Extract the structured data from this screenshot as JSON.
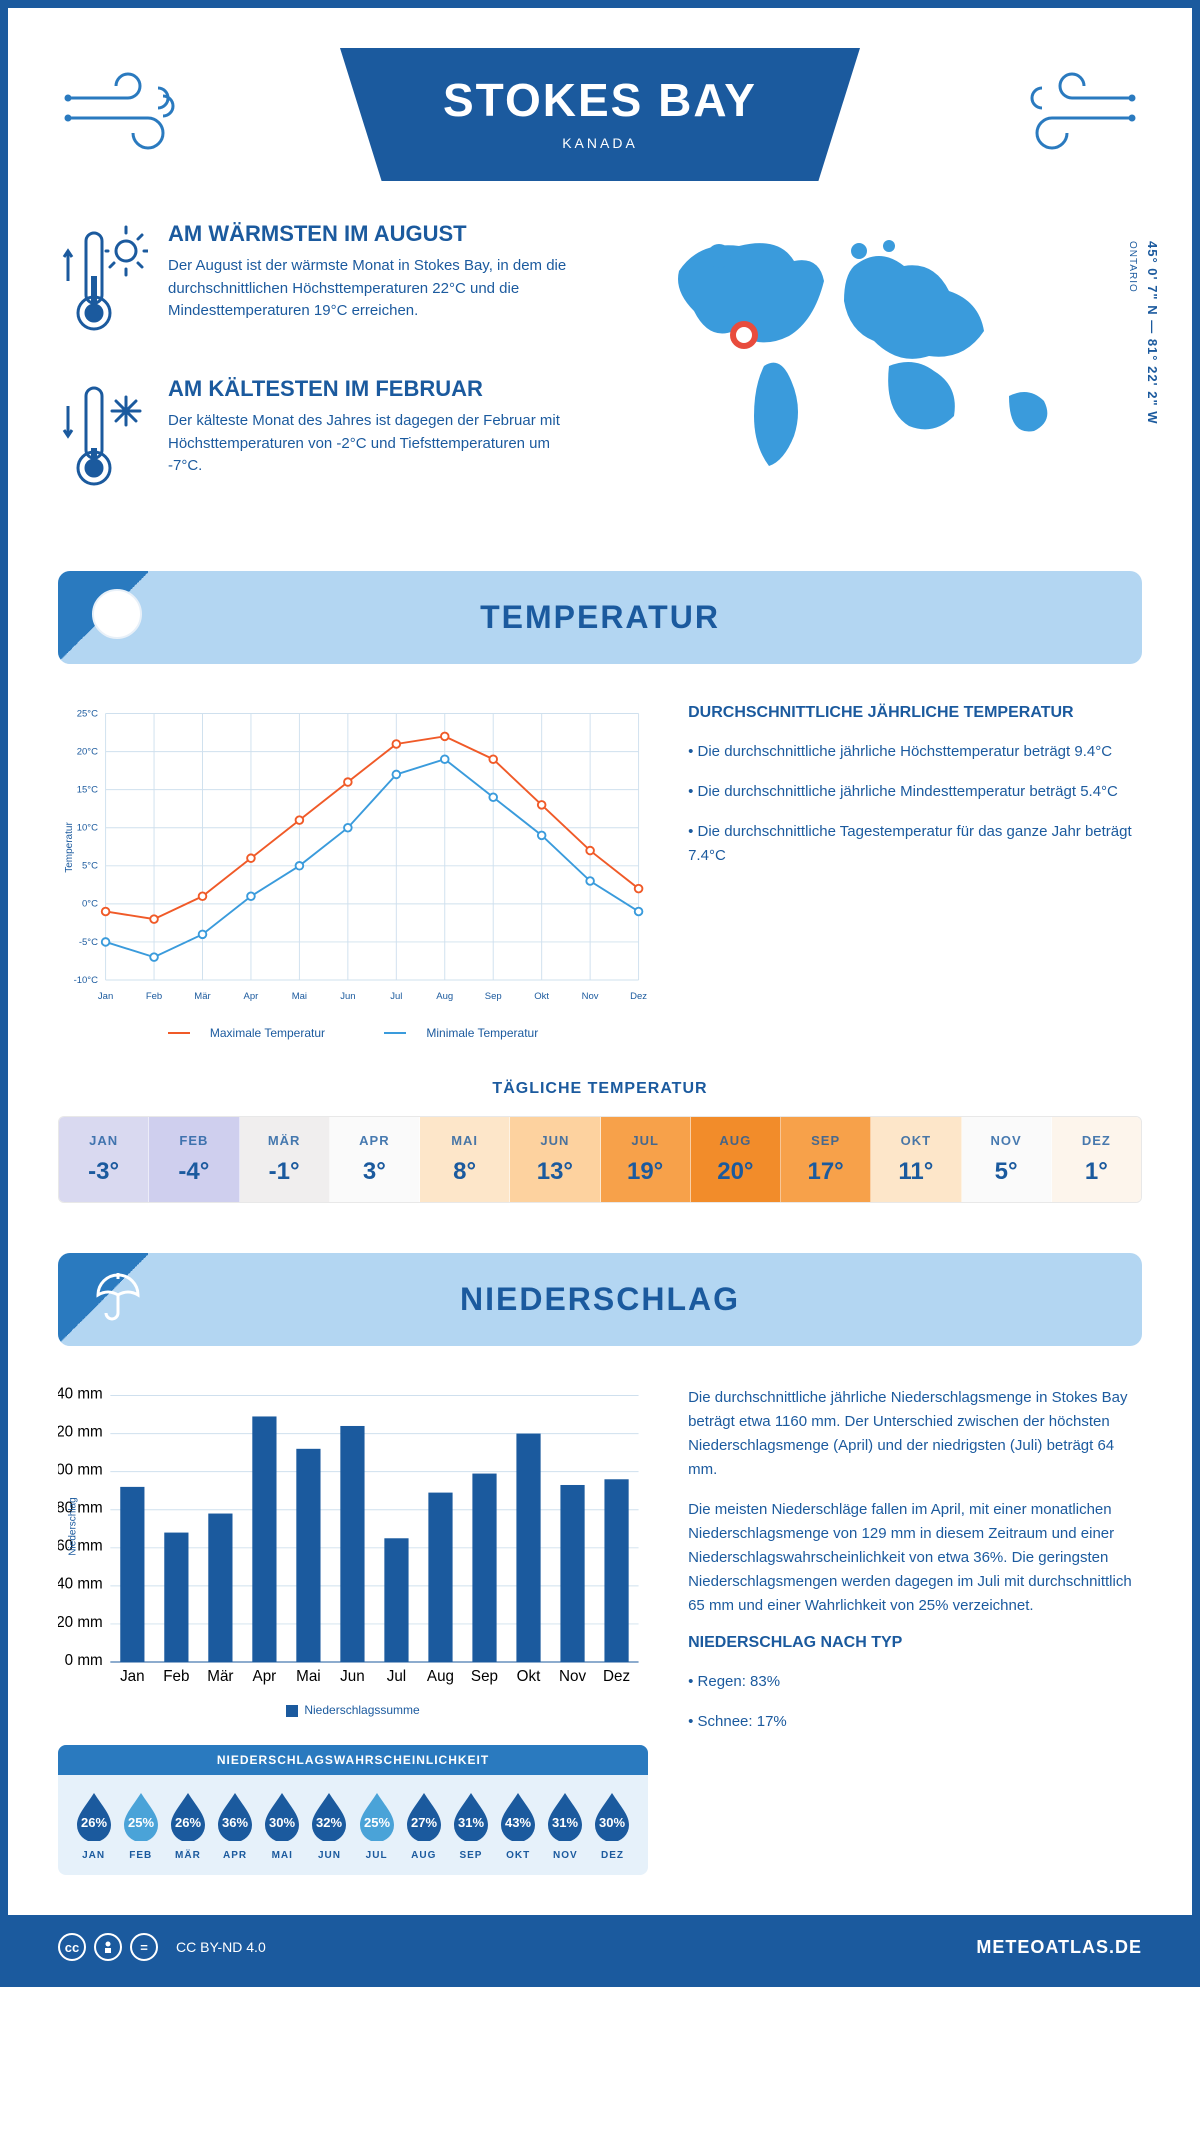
{
  "header": {
    "title": "STOKES BAY",
    "subtitle": "KANADA"
  },
  "summary": {
    "warm": {
      "title": "AM WÄRMSTEN IM AUGUST",
      "text": "Der August ist der wärmste Monat in Stokes Bay, in dem die durchschnittlichen Höchsttemperaturen 22°C und die Mindesttemperaturen 19°C erreichen."
    },
    "cold": {
      "title": "AM KÄLTESTEN IM FEBRUAR",
      "text": "Der kälteste Monat des Jahres ist dagegen der Februar mit Höchsttemperaturen von -2°C und Tiefsttemperaturen um -7°C."
    },
    "map": {
      "coords": "45° 0' 7\" N — 81° 22' 2\" W",
      "region": "ONTARIO"
    }
  },
  "temp_section": {
    "banner": "TEMPERATUR",
    "chart": {
      "type": "line",
      "months": [
        "Jan",
        "Feb",
        "Mär",
        "Apr",
        "Mai",
        "Jun",
        "Jul",
        "Aug",
        "Sep",
        "Okt",
        "Nov",
        "Dez"
      ],
      "series_max": {
        "label": "Maximale Temperatur",
        "color": "#f05a28",
        "values": [
          -1,
          -2,
          1,
          6,
          11,
          16,
          21,
          22,
          19,
          13,
          7,
          2
        ]
      },
      "series_min": {
        "label": "Minimale Temperatur",
        "color": "#3a9bdc",
        "values": [
          -5,
          -7,
          -4,
          1,
          5,
          10,
          17,
          19,
          14,
          9,
          3,
          -1
        ]
      },
      "ylim": [
        -10,
        25
      ],
      "ytick_step": 5,
      "ylabel": "Temperatur",
      "grid_color": "#cfe0ee"
    },
    "side": {
      "heading": "DURCHSCHNITTLICHE JÄHRLICHE TEMPERATUR",
      "bullets": [
        "Die durchschnittliche jährliche Höchsttemperatur beträgt 9.4°C",
        "Die durchschnittliche jährliche Mindesttemperatur beträgt 5.4°C",
        "Die durchschnittliche Tagestemperatur für das ganze Jahr beträgt 7.4°C"
      ]
    }
  },
  "daily_temp": {
    "title": "TÄGLICHE TEMPERATUR",
    "months": [
      "JAN",
      "FEB",
      "MÄR",
      "APR",
      "MAI",
      "JUN",
      "JUL",
      "AUG",
      "SEP",
      "OKT",
      "NOV",
      "DEZ"
    ],
    "values": [
      "-3°",
      "-4°",
      "-1°",
      "3°",
      "8°",
      "13°",
      "19°",
      "20°",
      "17°",
      "11°",
      "5°",
      "1°"
    ],
    "colors": [
      "#d9d9f0",
      "#cfcfee",
      "#f0eeee",
      "#fafafa",
      "#fde6c9",
      "#fdd29f",
      "#f7a14a",
      "#f28c2a",
      "#f7a14a",
      "#fde6c9",
      "#fafafa",
      "#fdf5ec"
    ]
  },
  "precip_section": {
    "banner": "NIEDERSCHLAG",
    "chart": {
      "type": "bar",
      "months": [
        "Jan",
        "Feb",
        "Mär",
        "Apr",
        "Mai",
        "Jun",
        "Jul",
        "Aug",
        "Sep",
        "Okt",
        "Nov",
        "Dez"
      ],
      "values": [
        92,
        68,
        78,
        129,
        112,
        124,
        65,
        89,
        99,
        120,
        93,
        96
      ],
      "ylim": [
        0,
        140
      ],
      "ytick_step": 20,
      "ylabel": "Niederschlag",
      "bar_color": "#1b5a9e",
      "legend": "Niederschlagssumme"
    },
    "side": {
      "para1": "Die durchschnittliche jährliche Niederschlagsmenge in Stokes Bay beträgt etwa 1160 mm. Der Unterschied zwischen der höchsten Niederschlagsmenge (April) und der niedrigsten (Juli) beträgt 64 mm.",
      "para2": "Die meisten Niederschläge fallen im April, mit einer monatlichen Niederschlagsmenge von 129 mm in diesem Zeitraum und einer Niederschlagswahrscheinlichkeit von etwa 36%. Die geringsten Niederschlagsmengen werden dagegen im Juli mit durchschnittlich 65 mm und einer Wahrlichkeit von 25% verzeichnet.",
      "type_heading": "NIEDERSCHLAG NACH TYP",
      "type_bullets": [
        "Regen: 83%",
        "Schnee: 17%"
      ]
    },
    "prob": {
      "title": "NIEDERSCHLAGSWAHRSCHEINLICHKEIT",
      "months": [
        "JAN",
        "FEB",
        "MÄR",
        "APR",
        "MAI",
        "JUN",
        "JUL",
        "AUG",
        "SEP",
        "OKT",
        "NOV",
        "DEZ"
      ],
      "values": [
        "26%",
        "25%",
        "26%",
        "36%",
        "30%",
        "32%",
        "25%",
        "27%",
        "31%",
        "43%",
        "31%",
        "30%"
      ],
      "colors": [
        "#1b5a9e",
        "#4aa3d8",
        "#1b5a9e",
        "#1b5a9e",
        "#1b5a9e",
        "#1b5a9e",
        "#4aa3d8",
        "#1b5a9e",
        "#1b5a9e",
        "#1b5a9e",
        "#1b5a9e",
        "#1b5a9e"
      ]
    }
  },
  "footer": {
    "license": "CC BY-ND 4.0",
    "logo": "METEOATLAS.DE"
  }
}
